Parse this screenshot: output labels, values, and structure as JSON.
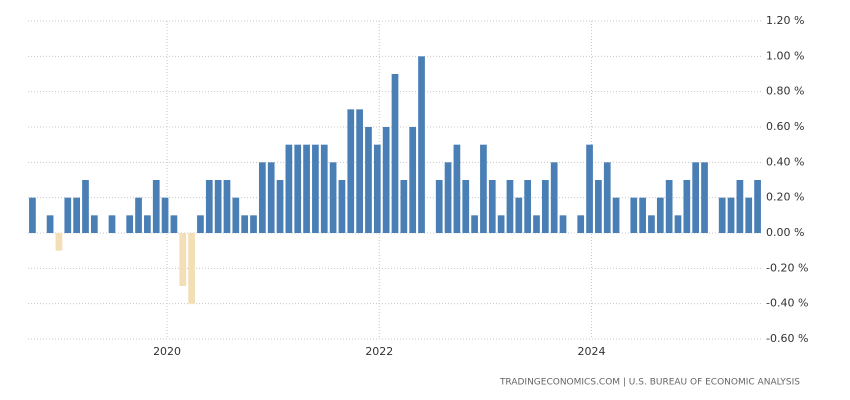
{
  "chart_data": {
    "type": "bar",
    "categories": [
      null,
      null,
      null,
      null,
      null,
      null,
      null,
      null,
      null,
      null,
      null,
      null,
      null,
      null,
      null,
      "2020",
      null,
      null,
      null,
      null,
      null,
      null,
      null,
      null,
      null,
      null,
      null,
      null,
      null,
      null,
      null,
      null,
      null,
      null,
      null,
      null,
      null,
      null,
      null,
      "2022",
      null,
      null,
      null,
      null,
      null,
      null,
      null,
      null,
      null,
      null,
      null,
      null,
      null,
      null,
      null,
      null,
      null,
      null,
      null,
      null,
      null,
      null,
      null,
      "2024",
      null,
      null,
      null,
      null,
      null,
      null,
      null,
      null,
      null,
      null,
      null,
      null,
      null,
      null,
      null,
      null,
      null,
      null,
      null
    ],
    "values": [
      0.2,
      0,
      0.1,
      -0.1,
      0.2,
      0.2,
      0.3,
      0.1,
      0,
      0.1,
      0,
      0.1,
      0.2,
      0.1,
      0.3,
      0.2,
      0.1,
      -0.3,
      -0.4,
      0.1,
      0.3,
      0.3,
      0.3,
      0.2,
      0.1,
      0.1,
      0.4,
      0.4,
      0.3,
      0.5,
      0.5,
      0.5,
      0.5,
      0.5,
      0.4,
      0.3,
      0.7,
      0.7,
      0.6,
      0.5,
      0.6,
      0.9,
      0.3,
      0.6,
      1.0,
      0,
      0.3,
      0.4,
      0.5,
      0.3,
      0.1,
      0.5,
      0.3,
      0.1,
      0.3,
      0.2,
      0.3,
      0.1,
      0.3,
      0.4,
      0.1,
      0,
      0.1,
      0.5,
      0.3,
      0.4,
      0.2,
      0,
      0.2,
      0.2,
      0.1,
      0.2,
      0.3,
      0.1,
      0.3,
      0.4,
      0.4,
      0,
      0.2,
      0.2,
      0.3,
      0.2,
      0.3
    ],
    "color": "#4a7fb5",
    "negative_color": "#f3deb5",
    "ylim": [
      -0.6,
      1.2
    ],
    "yticks": [
      {
        "value": -0.6,
        "label": "-0.60 %"
      },
      {
        "value": -0.4,
        "label": "-0.40 %"
      },
      {
        "value": -0.2,
        "label": "-0.20 %"
      },
      {
        "value": 0,
        "label": "0.00 %"
      },
      {
        "value": 0.2,
        "label": "0.20 %"
      },
      {
        "value": 0.4,
        "label": "0.40 %"
      },
      {
        "value": 0.6,
        "label": "0.60 %"
      },
      {
        "value": 0.8,
        "label": "0.80 %"
      },
      {
        "value": 1.0,
        "label": "1.00 %"
      },
      {
        "value": 1.2,
        "label": "1.20 %"
      }
    ],
    "grid": true,
    "source": "TRADINGECONOMICS.COM  |  U.S. BUREAU OF ECONOMIC ANALYSIS"
  }
}
